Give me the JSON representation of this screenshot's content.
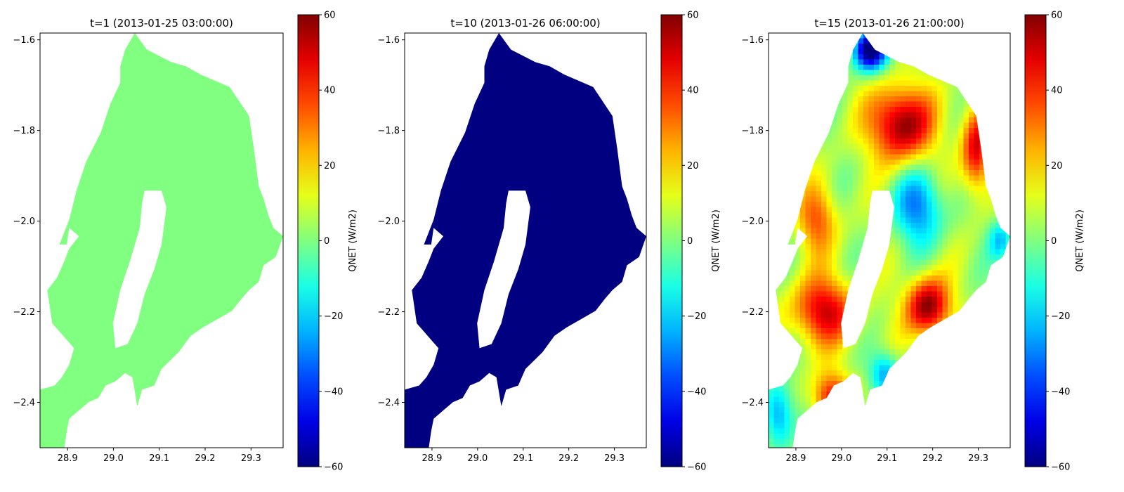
{
  "chart_data": [
    {
      "type": "heatmap",
      "title": "t=1 (2013-01-25 03:00:00)",
      "xlim": [
        28.84,
        29.37
      ],
      "ylim": [
        -2.5,
        -1.585
      ],
      "xticks": [
        "28.9",
        "29.0",
        "29.1",
        "29.2",
        "29.3"
      ],
      "yticks": [
        "−1.6",
        "−1.8",
        "−2.0",
        "−2.2",
        "−2.4"
      ],
      "colorbar": {
        "label": "QNET (W/m2)",
        "range": [
          -60,
          60
        ],
        "ticks": [
          "60",
          "40",
          "20",
          "0",
          "−20",
          "−40",
          "−60"
        ]
      },
      "field": "uniform",
      "value": 0
    },
    {
      "type": "heatmap",
      "title": "t=10 (2013-01-26 06:00:00)",
      "xlim": [
        28.84,
        29.37
      ],
      "ylim": [
        -2.5,
        -1.585
      ],
      "xticks": [
        "28.9",
        "29.0",
        "29.1",
        "29.2",
        "29.3"
      ],
      "yticks": [
        "−1.6",
        "−1.8",
        "−2.0",
        "−2.2",
        "−2.4"
      ],
      "colorbar": {
        "label": "QNET (W/m2)",
        "range": [
          -60,
          60
        ],
        "ticks": [
          "60",
          "40",
          "20",
          "0",
          "−20",
          "−40",
          "−60"
        ]
      },
      "field": "uniform",
      "value": -60
    },
    {
      "type": "heatmap",
      "title": "t=15 (2013-01-26 21:00:00)",
      "xlim": [
        28.84,
        29.37
      ],
      "ylim": [
        -2.5,
        -1.585
      ],
      "xticks": [
        "28.9",
        "29.0",
        "29.1",
        "29.2",
        "29.3"
      ],
      "yticks": [
        "−1.6",
        "−1.8",
        "−2.0",
        "−2.2",
        "−2.4"
      ],
      "colorbar": {
        "label": "QNET (W/m2)",
        "range": [
          -60,
          60
        ],
        "ticks": [
          "60",
          "40",
          "20",
          "0",
          "−20",
          "−40",
          "−60"
        ]
      },
      "field": "spatially varying",
      "value_range": [
        -60,
        60
      ]
    }
  ]
}
